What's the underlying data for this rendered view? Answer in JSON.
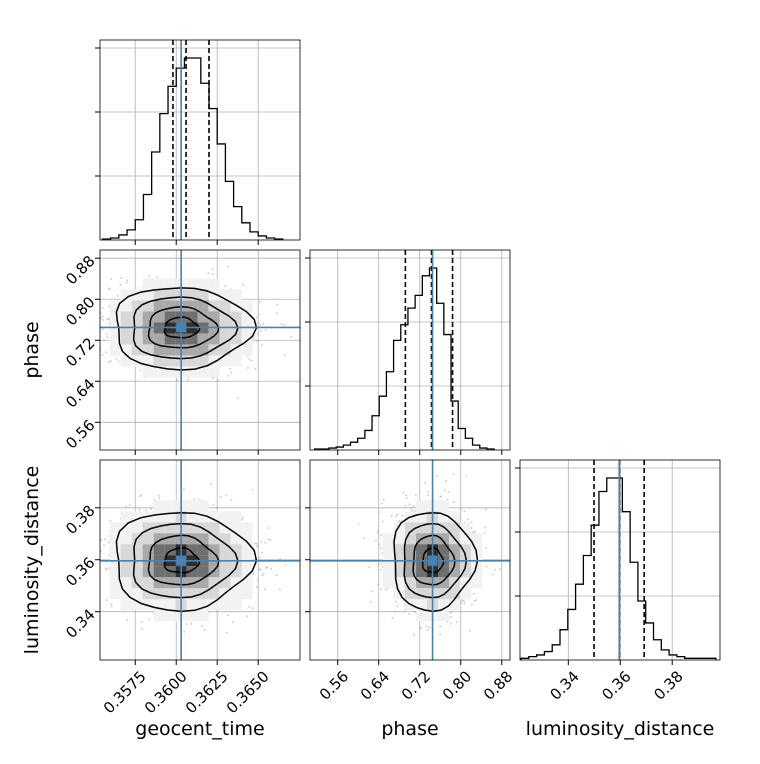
{
  "colors": {
    "truth": "#4682b4",
    "hist": "#000000",
    "grid": "#b0b0b0",
    "points": "#a9a9a9"
  },
  "chart_data": {
    "type": "corner",
    "parameters": [
      "geocent_time",
      "phase",
      "luminosity_distance"
    ],
    "grid": true,
    "axes": {
      "geocent_time": {
        "label": "geocent_time",
        "range": [
          0.35535,
          0.36755
        ],
        "ticks": [
          0.3575,
          0.36,
          0.3625,
          0.365
        ],
        "tick_labels": [
          "0.3575",
          "0.3600",
          "0.3625",
          "0.3650"
        ],
        "truth": 0.3603,
        "quantiles": [
          0.3598,
          0.3606,
          0.362
        ]
      },
      "phase": {
        "label": "phase",
        "range": [
          0.506,
          0.896
        ],
        "ticks": [
          0.56,
          0.64,
          0.72,
          0.8,
          0.88
        ],
        "tick_labels": [
          "0.56",
          "0.64",
          "0.72",
          "0.80",
          "0.88"
        ],
        "truth": 0.745,
        "quantiles": [
          0.692,
          0.743,
          0.784
        ]
      },
      "luminosity_distance": {
        "label": "luminosity_distance",
        "range": [
          0.3214,
          0.3984
        ],
        "ticks": [
          0.34,
          0.36,
          0.38
        ],
        "tick_labels": [
          "0.34",
          "0.36",
          "0.38"
        ],
        "truth": 0.3596,
        "quantiles": [
          0.3499,
          0.3597,
          0.3692
        ]
      }
    },
    "histograms": {
      "geocent_time": {
        "centers": [
          0.35575,
          0.35625,
          0.35675,
          0.35725,
          0.35775,
          0.35825,
          0.35875,
          0.35925,
          0.35975,
          0.36025,
          0.36075,
          0.36125,
          0.36175,
          0.36225,
          0.36275,
          0.36325,
          0.36375,
          0.36425,
          0.36475,
          0.36525,
          0.36575,
          0.36625
        ],
        "values": [
          1,
          2,
          5,
          10,
          20,
          45,
          87,
          125,
          152,
          170,
          180,
          180,
          155,
          130,
          95,
          58,
          33,
          17,
          8,
          4,
          2,
          1
        ]
      },
      "phase": {
        "centers": [
          0.522,
          0.536,
          0.55,
          0.564,
          0.578,
          0.592,
          0.606,
          0.62,
          0.634,
          0.648,
          0.662,
          0.676,
          0.69,
          0.704,
          0.718,
          0.732,
          0.746,
          0.76,
          0.774,
          0.788,
          0.802,
          0.816,
          0.83,
          0.844,
          0.858
        ],
        "values": [
          1,
          1,
          2,
          3,
          5,
          8,
          12,
          20,
          35,
          55,
          80,
          112,
          128,
          145,
          158,
          178,
          186,
          150,
          118,
          50,
          22,
          12,
          5,
          2,
          1
        ]
      },
      "luminosity_distance": {
        "centers": [
          0.3233,
          0.3263,
          0.3293,
          0.3323,
          0.3353,
          0.3383,
          0.3413,
          0.3443,
          0.3473,
          0.3503,
          0.3533,
          0.3563,
          0.3593,
          0.3623,
          0.3653,
          0.3683,
          0.3713,
          0.3743,
          0.3773,
          0.3803,
          0.3833,
          0.3863,
          0.3893,
          0.3923,
          0.3953
        ],
        "values": [
          1,
          2,
          3,
          5,
          9,
          18,
          30,
          45,
          62,
          80,
          100,
          108,
          108,
          88,
          58,
          35,
          22,
          12,
          6,
          3,
          2,
          1,
          1,
          1,
          1
        ]
      }
    },
    "two_d": [
      {
        "x": "geocent_time",
        "y": "phase",
        "center": [
          0.3603,
          0.744
        ],
        "spread": [
          0.0021,
          0.04
        ]
      },
      {
        "x": "geocent_time",
        "y": "luminosity_distance",
        "center": [
          0.3603,
          0.3596
        ],
        "spread": [
          0.0021,
          0.0095
        ]
      },
      {
        "x": "phase",
        "y": "luminosity_distance",
        "center": [
          0.745,
          0.3596
        ],
        "spread": [
          0.04,
          0.0095
        ]
      }
    ]
  }
}
